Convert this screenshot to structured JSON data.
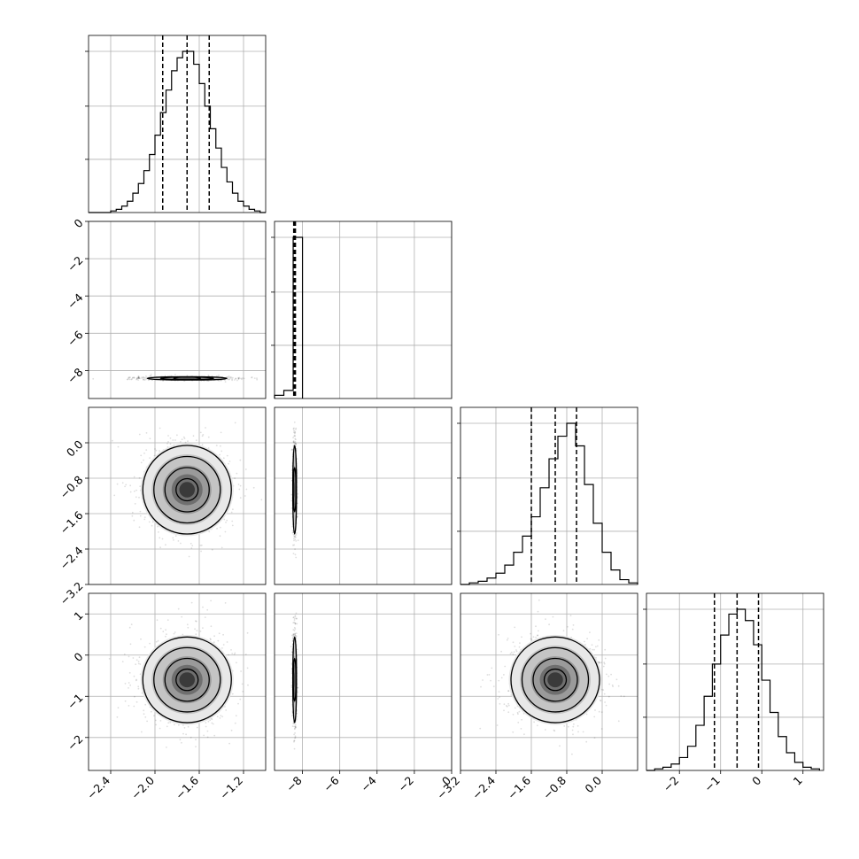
{
  "chart_data": {
    "type": "corner",
    "grid": true,
    "parameters": [
      {
        "range": [
          -2.6,
          -1.0
        ],
        "ticks": [
          -2.4,
          -2.0,
          -1.6,
          -1.2
        ],
        "tick_labels": [
          "−2.4",
          "−2.0",
          "−1.6",
          "−1.2"
        ],
        "median": -1.71,
        "quantile_16": -1.93,
        "quantile_84": -1.51,
        "hist_bins": [
          -2.6,
          -2.55,
          -2.5,
          -2.45,
          -2.4,
          -2.35,
          -2.3,
          -2.25,
          -2.2,
          -2.15,
          -2.1,
          -2.05,
          -2.0,
          -1.95,
          -1.9,
          -1.85,
          -1.8,
          -1.75,
          -1.7,
          -1.65,
          -1.6,
          -1.55,
          -1.5,
          -1.45,
          -1.4,
          -1.35,
          -1.3,
          -1.25,
          -1.2,
          -1.15,
          -1.1,
          -1.05,
          -1.0
        ],
        "hist_counts": [
          0,
          0,
          0,
          0,
          1,
          2,
          4,
          7,
          12,
          18,
          26,
          36,
          48,
          62,
          76,
          88,
          96,
          100,
          100,
          92,
          80,
          66,
          52,
          40,
          28,
          19,
          12,
          7,
          4,
          2,
          1,
          0
        ]
      },
      {
        "range": [
          -9.5,
          0.0
        ],
        "ticks": [
          -8,
          -6,
          -4,
          -2,
          0
        ],
        "tick_labels": [
          "−8",
          "−6",
          "−4",
          "−2",
          "0"
        ],
        "median": -8.42,
        "quantile_16": -8.47,
        "quantile_84": -8.38,
        "hist_bins": [
          -9.5,
          -9.0,
          -8.5,
          -8.0
        ],
        "hist_counts": [
          2,
          5,
          100
        ]
      },
      {
        "range": [
          -3.2,
          0.8
        ],
        "ticks": [
          -3.2,
          -2.4,
          -1.6,
          -0.8,
          0.0
        ],
        "tick_labels": [
          "−3.2",
          "−2.4",
          "−1.6",
          "−0.8",
          "0.0"
        ],
        "median": -1.06,
        "quantile_16": -1.6,
        "quantile_84": -0.58,
        "hist_bins": [
          -3.2,
          -3.0,
          -2.8,
          -2.6,
          -2.4,
          -2.2,
          -2.0,
          -1.8,
          -1.6,
          -1.4,
          -1.2,
          -1.0,
          -0.8,
          -0.6,
          -0.4,
          -0.2,
          0.0,
          0.2,
          0.4,
          0.6,
          0.8
        ],
        "hist_counts": [
          0,
          1,
          2,
          4,
          7,
          12,
          20,
          30,
          42,
          60,
          78,
          92,
          100,
          86,
          62,
          38,
          20,
          9,
          3,
          1
        ]
      },
      {
        "range": [
          -2.8,
          1.5
        ],
        "ticks": [
          -2,
          -1,
          0,
          1
        ],
        "tick_labels": [
          "−2",
          "−1",
          "0",
          "1"
        ],
        "median": -0.6,
        "quantile_16": -1.15,
        "quantile_84": -0.08,
        "hist_bins": [
          -2.8,
          -2.6,
          -2.4,
          -2.2,
          -2.0,
          -1.8,
          -1.6,
          -1.4,
          -1.2,
          -1.0,
          -0.8,
          -0.6,
          -0.4,
          -0.2,
          0.0,
          0.2,
          0.4,
          0.6,
          0.8,
          1.0,
          1.2,
          1.4
        ],
        "hist_counts": [
          0,
          1,
          2,
          4,
          8,
          15,
          28,
          46,
          66,
          84,
          97,
          100,
          93,
          78,
          56,
          36,
          21,
          11,
          5,
          2,
          1
        ]
      }
    ],
    "pairs": [
      {
        "row": 1,
        "col": 0,
        "center": [
          -1.71,
          -8.42
        ],
        "sigma": [
          0.2,
          0.05
        ],
        "levels_sigma": [
          0.6,
          1.2,
          1.8
        ]
      },
      {
        "row": 2,
        "col": 0,
        "center": [
          -1.71,
          -1.06
        ],
        "sigma": [
          0.2,
          0.5
        ],
        "levels_sigma": [
          0.5,
          1.0,
          1.5,
          2.0
        ]
      },
      {
        "row": 2,
        "col": 1,
        "center": [
          -8.42,
          -1.06
        ],
        "sigma": [
          0.05,
          0.5
        ],
        "levels_sigma": [
          1.0,
          2.0
        ]
      },
      {
        "row": 3,
        "col": 0,
        "center": [
          -1.71,
          -0.6
        ],
        "sigma": [
          0.2,
          0.52
        ],
        "levels_sigma": [
          0.5,
          1.0,
          1.5,
          2.0
        ]
      },
      {
        "row": 3,
        "col": 1,
        "center": [
          -8.42,
          -0.6
        ],
        "sigma": [
          0.05,
          0.52
        ],
        "levels_sigma": [
          1.0,
          2.0
        ]
      },
      {
        "row": 3,
        "col": 2,
        "center": [
          -1.06,
          -0.6
        ],
        "sigma": [
          0.5,
          0.52
        ],
        "levels_sigma": [
          0.5,
          1.0,
          1.5,
          2.0
        ]
      }
    ]
  }
}
